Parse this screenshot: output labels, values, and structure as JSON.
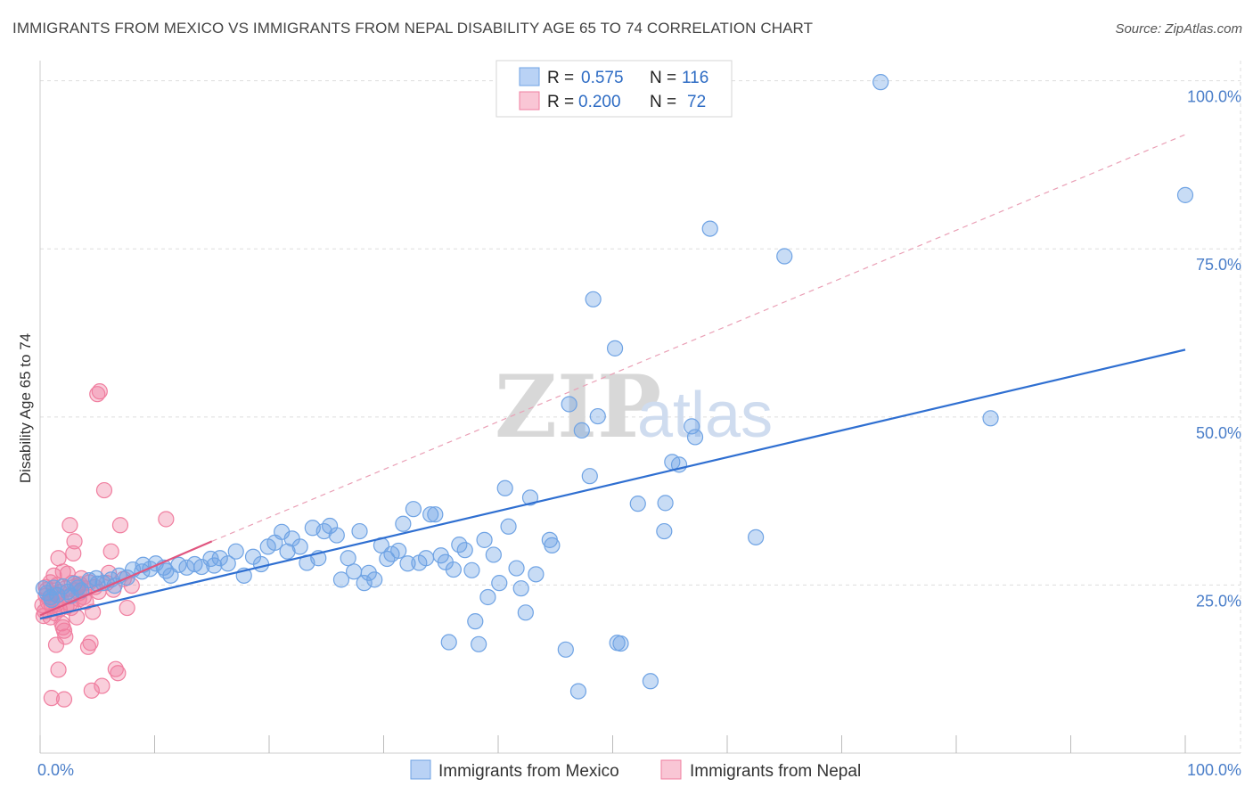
{
  "header": {
    "title": "IMMIGRANTS FROM MEXICO VS IMMIGRANTS FROM NEPAL DISABILITY AGE 65 TO 74 CORRELATION CHART",
    "source": "Source: ZipAtlas.com"
  },
  "watermark": {
    "zip": "ZIP",
    "atlas": "atlas"
  },
  "colors": {
    "mexico": "#6fa3e4",
    "mexico_line": "#2f6fd1",
    "nepal": "#f07fa0",
    "nepal_line": "#e0557f",
    "grid": "#dddddd",
    "tick_text": "#4a7ec9"
  },
  "stats": [
    {
      "r_label": "R =",
      "r_value": "0.575",
      "n_label": "N =",
      "n_value": "116"
    },
    {
      "r_label": "R =",
      "r_value": "0.200",
      "n_label": "N =",
      "n_value": "72"
    }
  ],
  "legend": {
    "mexico": "Immigrants from Mexico",
    "nepal": "Immigrants from Nepal"
  },
  "chart_data": {
    "type": "scatter",
    "title": "IMMIGRANTS FROM MEXICO VS IMMIGRANTS FROM NEPAL DISABILITY AGE 65 TO 74 CORRELATION CHART",
    "xlabel": "",
    "ylabel": "Disability Age 65 to 74",
    "xlim": [
      0,
      100
    ],
    "ylim": [
      0,
      103
    ],
    "x_tick_labels": [
      "0.0%",
      "100.0%"
    ],
    "y_ticks": [
      25,
      50,
      75,
      100
    ],
    "y_tick_labels": [
      "25.0%",
      "50.0%",
      "75.0%",
      "100.0%"
    ],
    "grid": true,
    "series": [
      {
        "name": "Immigrants from Mexico",
        "color": "#6fa3e4",
        "trend": {
          "x": [
            0,
            100
          ],
          "y": [
            20.0,
            60.0
          ],
          "style": "solid"
        },
        "points": [
          [
            0.3,
            24.5
          ],
          [
            0.6,
            23.8
          ],
          [
            0.9,
            23.2
          ],
          [
            1.2,
            24.6
          ],
          [
            1.5,
            23.5
          ],
          [
            2.0,
            24.8
          ],
          [
            2.4,
            24.0
          ],
          [
            3.0,
            25.2
          ],
          [
            3.6,
            24.2
          ],
          [
            4.3,
            25.7
          ],
          [
            4.9,
            26.0
          ],
          [
            5.5,
            25.3
          ],
          [
            6.2,
            25.8
          ],
          [
            6.9,
            26.4
          ],
          [
            7.6,
            26.1
          ],
          [
            8.1,
            27.3
          ],
          [
            8.9,
            27.0
          ],
          [
            9.6,
            27.4
          ],
          [
            10.1,
            28.2
          ],
          [
            10.8,
            27.6
          ],
          [
            11.4,
            26.4
          ],
          [
            12.1,
            28.0
          ],
          [
            12.8,
            27.6
          ],
          [
            13.5,
            28.1
          ],
          [
            14.1,
            27.7
          ],
          [
            14.9,
            28.9
          ],
          [
            15.7,
            29.0
          ],
          [
            16.4,
            28.2
          ],
          [
            17.1,
            30.0
          ],
          [
            17.8,
            26.4
          ],
          [
            18.6,
            29.2
          ],
          [
            19.3,
            28.1
          ],
          [
            19.9,
            30.7
          ],
          [
            20.5,
            31.3
          ],
          [
            21.1,
            32.9
          ],
          [
            21.6,
            30.0
          ],
          [
            22.0,
            31.9
          ],
          [
            22.7,
            30.7
          ],
          [
            23.3,
            28.3
          ],
          [
            23.8,
            33.5
          ],
          [
            24.3,
            29.0
          ],
          [
            24.8,
            33.0
          ],
          [
            25.3,
            33.8
          ],
          [
            25.9,
            32.4
          ],
          [
            26.3,
            25.8
          ],
          [
            26.9,
            29.0
          ],
          [
            27.4,
            27.0
          ],
          [
            27.9,
            33.0
          ],
          [
            28.3,
            25.3
          ],
          [
            28.7,
            26.8
          ],
          [
            29.2,
            25.8
          ],
          [
            29.8,
            30.9
          ],
          [
            30.3,
            28.9
          ],
          [
            30.7,
            29.6
          ],
          [
            31.3,
            30.1
          ],
          [
            31.7,
            34.1
          ],
          [
            32.1,
            28.2
          ],
          [
            32.6,
            36.3
          ],
          [
            33.1,
            28.3
          ],
          [
            33.7,
            29.0
          ],
          [
            34.1,
            35.5
          ],
          [
            34.5,
            35.5
          ],
          [
            35.0,
            29.4
          ],
          [
            35.4,
            28.4
          ],
          [
            35.7,
            16.5
          ],
          [
            36.1,
            27.3
          ],
          [
            36.6,
            31.0
          ],
          [
            37.1,
            30.2
          ],
          [
            37.7,
            27.2
          ],
          [
            38.0,
            19.6
          ],
          [
            38.3,
            16.2
          ],
          [
            38.8,
            31.7
          ],
          [
            39.1,
            23.2
          ],
          [
            39.6,
            29.5
          ],
          [
            40.1,
            25.3
          ],
          [
            40.6,
            39.4
          ],
          [
            40.9,
            33.7
          ],
          [
            41.6,
            27.5
          ],
          [
            42.0,
            24.5
          ],
          [
            42.4,
            20.9
          ],
          [
            42.8,
            38.0
          ],
          [
            43.3,
            26.6
          ],
          [
            44.5,
            31.7
          ],
          [
            44.7,
            30.9
          ],
          [
            45.9,
            15.4
          ],
          [
            46.2,
            51.9
          ],
          [
            47.0,
            9.2
          ],
          [
            47.3,
            48.0
          ],
          [
            48.0,
            41.2
          ],
          [
            48.3,
            67.5
          ],
          [
            48.7,
            50.1
          ],
          [
            50.2,
            60.2
          ],
          [
            50.4,
            16.4
          ],
          [
            50.7,
            16.3
          ],
          [
            52.2,
            37.1
          ],
          [
            53.3,
            10.7
          ],
          [
            54.5,
            33.0
          ],
          [
            54.6,
            37.2
          ],
          [
            55.2,
            43.3
          ],
          [
            55.8,
            42.9
          ],
          [
            56.9,
            48.6
          ],
          [
            57.2,
            47.0
          ],
          [
            58.5,
            78.0
          ],
          [
            62.5,
            32.1
          ],
          [
            65.0,
            73.9
          ],
          [
            73.4,
            99.8
          ],
          [
            83.0,
            49.8
          ],
          [
            100.0,
            83.0
          ],
          [
            1.0,
            22.8
          ],
          [
            2.7,
            23.4
          ],
          [
            3.3,
            24.6
          ],
          [
            5.0,
            25.2
          ],
          [
            6.5,
            24.9
          ],
          [
            9.0,
            28.0
          ],
          [
            11.0,
            27.1
          ],
          [
            15.2,
            27.9
          ]
        ]
      },
      {
        "name": "Immigrants from Nepal",
        "color": "#f07fa0",
        "trend": {
          "x": [
            0,
            15
          ],
          "y": [
            20.5,
            31.5
          ],
          "style": "solid",
          "extended_x": [
            15,
            100
          ],
          "extended_y": [
            31.5,
            92.0
          ],
          "extended_style": "dashed"
        },
        "points": [
          [
            0.2,
            22.0
          ],
          [
            0.4,
            21.1
          ],
          [
            0.5,
            23.4
          ],
          [
            0.6,
            24.3
          ],
          [
            0.7,
            22.4
          ],
          [
            0.8,
            23.0
          ],
          [
            0.9,
            20.2
          ],
          [
            1.0,
            21.9
          ],
          [
            1.1,
            22.8
          ],
          [
            1.2,
            26.4
          ],
          [
            1.3,
            23.6
          ],
          [
            1.4,
            22.1
          ],
          [
            1.5,
            25.0
          ],
          [
            1.6,
            29.0
          ],
          [
            1.7,
            24.0
          ],
          [
            1.8,
            22.9
          ],
          [
            1.9,
            19.3
          ],
          [
            2.0,
            18.7
          ],
          [
            2.1,
            18.2
          ],
          [
            2.2,
            17.3
          ],
          [
            2.3,
            21.8
          ],
          [
            2.4,
            26.7
          ],
          [
            2.5,
            23.3
          ],
          [
            2.6,
            33.9
          ],
          [
            2.7,
            21.6
          ],
          [
            2.8,
            25.3
          ],
          [
            2.9,
            29.7
          ],
          [
            3.0,
            31.5
          ],
          [
            3.1,
            24.2
          ],
          [
            3.2,
            20.2
          ],
          [
            3.3,
            24.9
          ],
          [
            3.4,
            23.8
          ],
          [
            3.5,
            25.1
          ],
          [
            3.6,
            26.0
          ],
          [
            3.8,
            23.2
          ],
          [
            4.0,
            22.5
          ],
          [
            4.2,
            15.8
          ],
          [
            4.4,
            16.4
          ],
          [
            4.6,
            21.0
          ],
          [
            4.8,
            24.7
          ],
          [
            5.0,
            53.4
          ],
          [
            5.2,
            53.8
          ],
          [
            5.4,
            10.0
          ],
          [
            5.6,
            39.1
          ],
          [
            5.8,
            25.3
          ],
          [
            6.0,
            26.8
          ],
          [
            6.2,
            30.0
          ],
          [
            6.4,
            24.3
          ],
          [
            6.6,
            12.5
          ],
          [
            6.8,
            11.9
          ],
          [
            7.0,
            33.9
          ],
          [
            7.3,
            25.9
          ],
          [
            7.6,
            21.6
          ],
          [
            8.0,
            24.9
          ],
          [
            11.0,
            34.8
          ],
          [
            1.0,
            8.2
          ],
          [
            2.1,
            8.0
          ],
          [
            4.5,
            9.3
          ],
          [
            1.6,
            12.4
          ],
          [
            0.3,
            20.4
          ],
          [
            0.5,
            24.7
          ],
          [
            0.9,
            25.4
          ],
          [
            1.3,
            20.8
          ],
          [
            1.7,
            21.4
          ],
          [
            2.2,
            24.5
          ],
          [
            2.6,
            22.2
          ],
          [
            3.4,
            22.9
          ],
          [
            3.9,
            24.5
          ],
          [
            4.3,
            25.4
          ],
          [
            5.1,
            24.0
          ],
          [
            1.4,
            16.1
          ],
          [
            2.0,
            27.0
          ]
        ]
      }
    ]
  }
}
